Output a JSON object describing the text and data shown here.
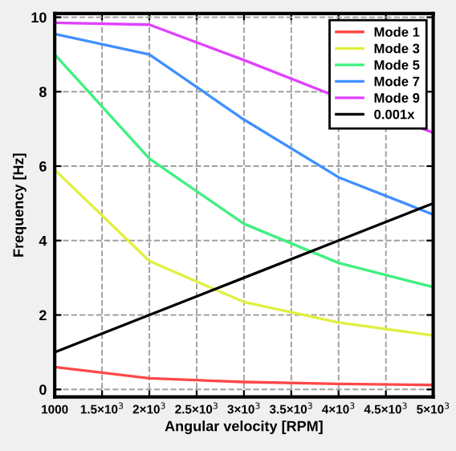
{
  "chart_data": {
    "type": "line",
    "xlabel": "Angular velocity [RPM]",
    "ylabel": "Frequency [Hz]",
    "x": [
      1000,
      2000,
      3000,
      4000,
      5000
    ],
    "series": [
      {
        "name": "Mode 1",
        "color": "#ff4848",
        "values": [
          0.6,
          0.3,
          0.2,
          0.15,
          0.12
        ]
      },
      {
        "name": "Mode 3",
        "color": "#e0f040",
        "values": [
          5.9,
          3.45,
          2.35,
          1.8,
          1.45
        ]
      },
      {
        "name": "Mode 5",
        "color": "#40f080",
        "values": [
          9.0,
          6.2,
          4.45,
          3.4,
          2.75
        ]
      },
      {
        "name": "Mode 7",
        "color": "#4090ff",
        "values": [
          9.55,
          9.0,
          7.25,
          5.7,
          4.7
        ]
      },
      {
        "name": "Mode 9",
        "color": "#e040ff",
        "values": [
          9.85,
          9.8,
          8.85,
          7.85,
          6.9
        ]
      },
      {
        "name": "0.001x",
        "color": "#000000",
        "values": [
          1,
          2,
          3,
          4,
          5
        ]
      }
    ],
    "xlim": [
      1000,
      5000
    ],
    "ylim": [
      -0.2,
      10.1
    ],
    "xticks": [
      1000,
      {
        "value": 1500,
        "label": "1.5×10$^{3}$"
      },
      {
        "value": 2000,
        "label": "2×10$^{3}$"
      },
      {
        "value": 2500,
        "label": "2.5×10$^{3}$"
      },
      {
        "value": 3000,
        "label": "3×10$^{3}$"
      },
      {
        "value": 3500,
        "label": "3.5×10$^{3}$"
      },
      {
        "value": 4000,
        "label": "4×10$^{3}$"
      },
      {
        "value": 4500,
        "label": "4.5×10$^{3}$"
      },
      {
        "value": 5000,
        "label": "5×10$^{3}$"
      }
    ],
    "yticks": [
      0,
      2,
      4,
      6,
      8,
      10
    ],
    "grid": true,
    "legend": "top right",
    "line_style": "solid"
  }
}
